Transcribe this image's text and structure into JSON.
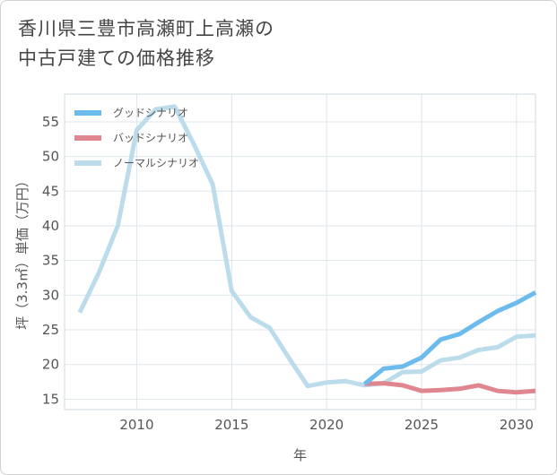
{
  "title_lines": [
    "香川県三豊市高瀬町上高瀬の",
    "中古戸建ての価格推移"
  ],
  "chart_data": {
    "type": "line",
    "xlabel": "年",
    "ylabel": "坪（3.3㎡）単価（万円）",
    "xlim": [
      2006.2,
      2031
    ],
    "ylim": [
      13.5,
      59
    ],
    "xticks": [
      2010,
      2015,
      2020,
      2025,
      2030
    ],
    "yticks": [
      15,
      20,
      25,
      30,
      35,
      40,
      45,
      50,
      55
    ],
    "grid": true,
    "legend_position": "top-left",
    "series": [
      {
        "name": "グッドシナリオ",
        "color": "#6bbbec",
        "x": [
          2022,
          2023,
          2024,
          2025,
          2026,
          2027,
          2028,
          2029,
          2030,
          2031
        ],
        "y": [
          17.2,
          19.4,
          19.7,
          21.0,
          23.6,
          24.4,
          26.1,
          27.7,
          28.9,
          30.4
        ]
      },
      {
        "name": "バッドシナリオ",
        "color": "#e0868e",
        "x": [
          2022,
          2023,
          2024,
          2025,
          2026,
          2027,
          2028,
          2029,
          2030,
          2031
        ],
        "y": [
          17.2,
          17.3,
          17.0,
          16.2,
          16.3,
          16.5,
          17.0,
          16.2,
          16.0,
          16.2
        ]
      },
      {
        "name": "ノーマルシナリオ",
        "color": "#bcdcec",
        "x": [
          2007,
          2008,
          2009,
          2010,
          2011,
          2012,
          2013,
          2014,
          2015,
          2016,
          2017,
          2018,
          2019,
          2020,
          2021,
          2022,
          2023,
          2024,
          2025,
          2026,
          2027,
          2028,
          2029,
          2030,
          2031
        ],
        "y": [
          27.5,
          33.2,
          40.0,
          53.8,
          56.8,
          57.2,
          51.8,
          46.0,
          30.6,
          26.8,
          25.3,
          21.0,
          16.9,
          17.4,
          17.6,
          17.0,
          17.3,
          18.9,
          19.0,
          20.6,
          21.0,
          22.1,
          22.5,
          24.0,
          24.2
        ]
      }
    ]
  }
}
